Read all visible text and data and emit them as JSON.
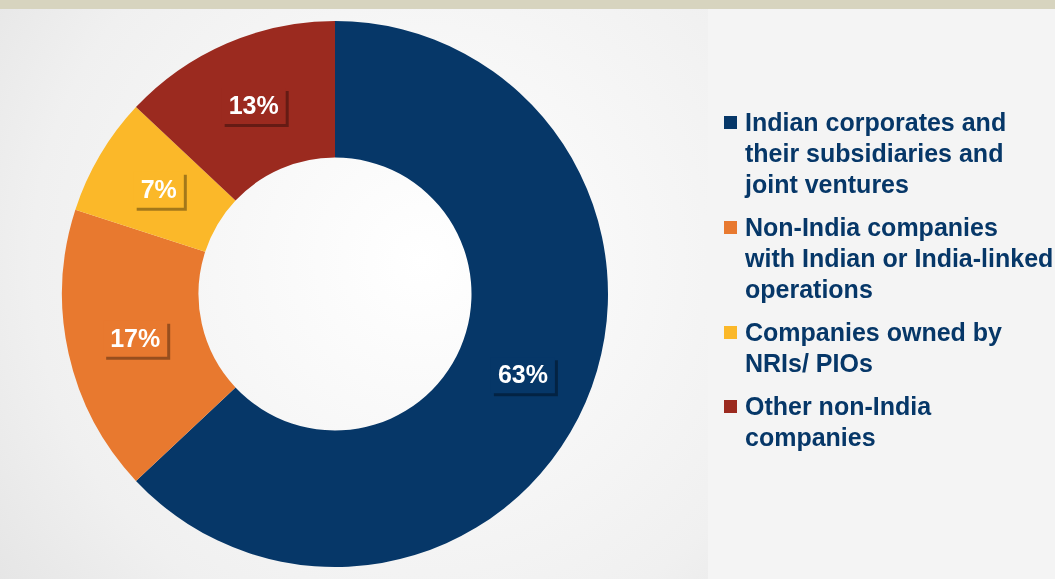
{
  "chart_data": {
    "type": "donut",
    "categories": [
      "Indian corporates and their subsidiaries and joint ventures",
      "Non-India companies with Indian or India-linked operations",
      "Companies owned by NRIs/ PIOs",
      "Other non-India companies"
    ],
    "values": [
      63,
      17,
      7,
      13
    ],
    "colors": [
      "#063768",
      "#e8792f",
      "#fbb829",
      "#9b2a1f"
    ],
    "value_labels": [
      "63%",
      "17%",
      "7%",
      "13%"
    ],
    "legend": "right"
  }
}
